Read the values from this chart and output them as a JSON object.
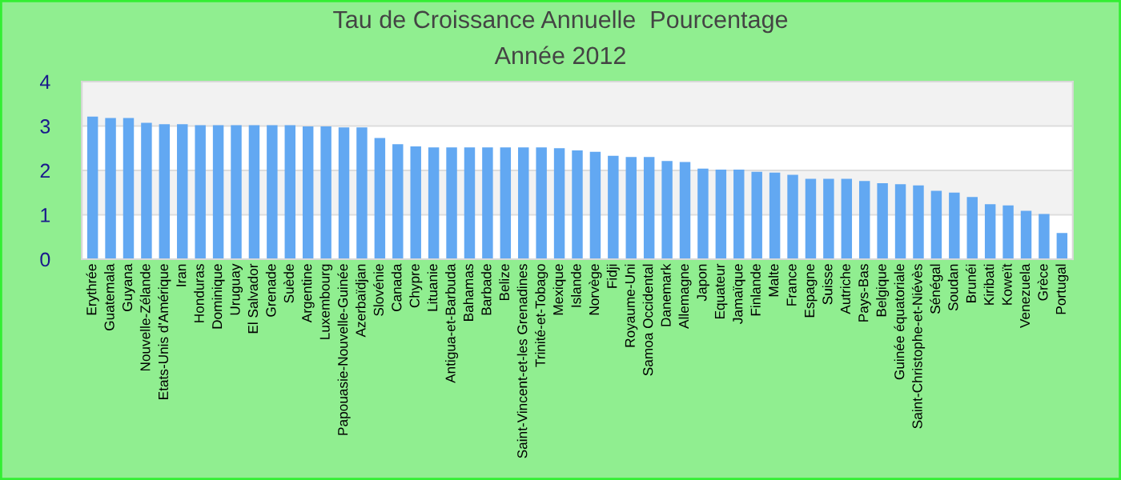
{
  "chart_data": {
    "type": "bar",
    "title": "Tau de Croissance Annuelle  Pourcentage",
    "subtitle": "Année 2012",
    "categories": [
      "Erythrée",
      "Guatemala",
      "Guyana",
      "Nouvelle-Zélande",
      "Etats-Unis d'Amérique",
      "Iran",
      "Honduras",
      "Dominique",
      "Uruguay",
      "El Salvador",
      "Grenade",
      "Suède",
      "Argentine",
      "Luxembourg",
      "Papouasie-Nouvelle-Guinée",
      "Azerbaïdjan",
      "Slovénie",
      "Canada",
      "Chypre",
      "Lituanie",
      "Antigua-et-Barbuda",
      "Bahamas",
      "Barbade",
      "Belize",
      "Saint-Vincent-et-les Grenadines",
      "Trinité-et-Tobago",
      "Mexique",
      "Islande",
      "Norvège",
      "Fidji",
      "Royaume-Uni",
      "Samoa Occidental",
      "Danemark",
      "Allemagne",
      "Japon",
      "Equateur",
      "Jamaïque",
      "Finlande",
      "Malte",
      "France",
      "Espagne",
      "Suisse",
      "Autriche",
      "Pays-Bas",
      "Belgique",
      "Guinée équatoriale",
      "Saint-Christophe-et-Niévès",
      "Sénégal",
      "Soudan",
      "Brunéi",
      "Kiribati",
      "Koweït",
      "Venezuela",
      "Grèce",
      "Portugal"
    ],
    "values": [
      3.21,
      3.18,
      3.18,
      3.07,
      3.04,
      3.04,
      3.02,
      3.02,
      3.02,
      3.02,
      3.02,
      3.02,
      2.99,
      2.99,
      2.97,
      2.97,
      2.73,
      2.59,
      2.54,
      2.52,
      2.52,
      2.52,
      2.52,
      2.52,
      2.52,
      2.52,
      2.5,
      2.45,
      2.42,
      2.33,
      2.3,
      2.3,
      2.21,
      2.19,
      2.04,
      2.02,
      2.02,
      1.97,
      1.95,
      1.9,
      1.81,
      1.81,
      1.81,
      1.76,
      1.71,
      1.69,
      1.66,
      1.54,
      1.5,
      1.4,
      1.24,
      1.21,
      1.09,
      1.02,
      0.59
    ],
    "color": "#62a8f2",
    "ylim": [
      0,
      4
    ],
    "yticks": [
      0,
      1,
      2,
      3,
      4
    ],
    "grid": "y"
  }
}
